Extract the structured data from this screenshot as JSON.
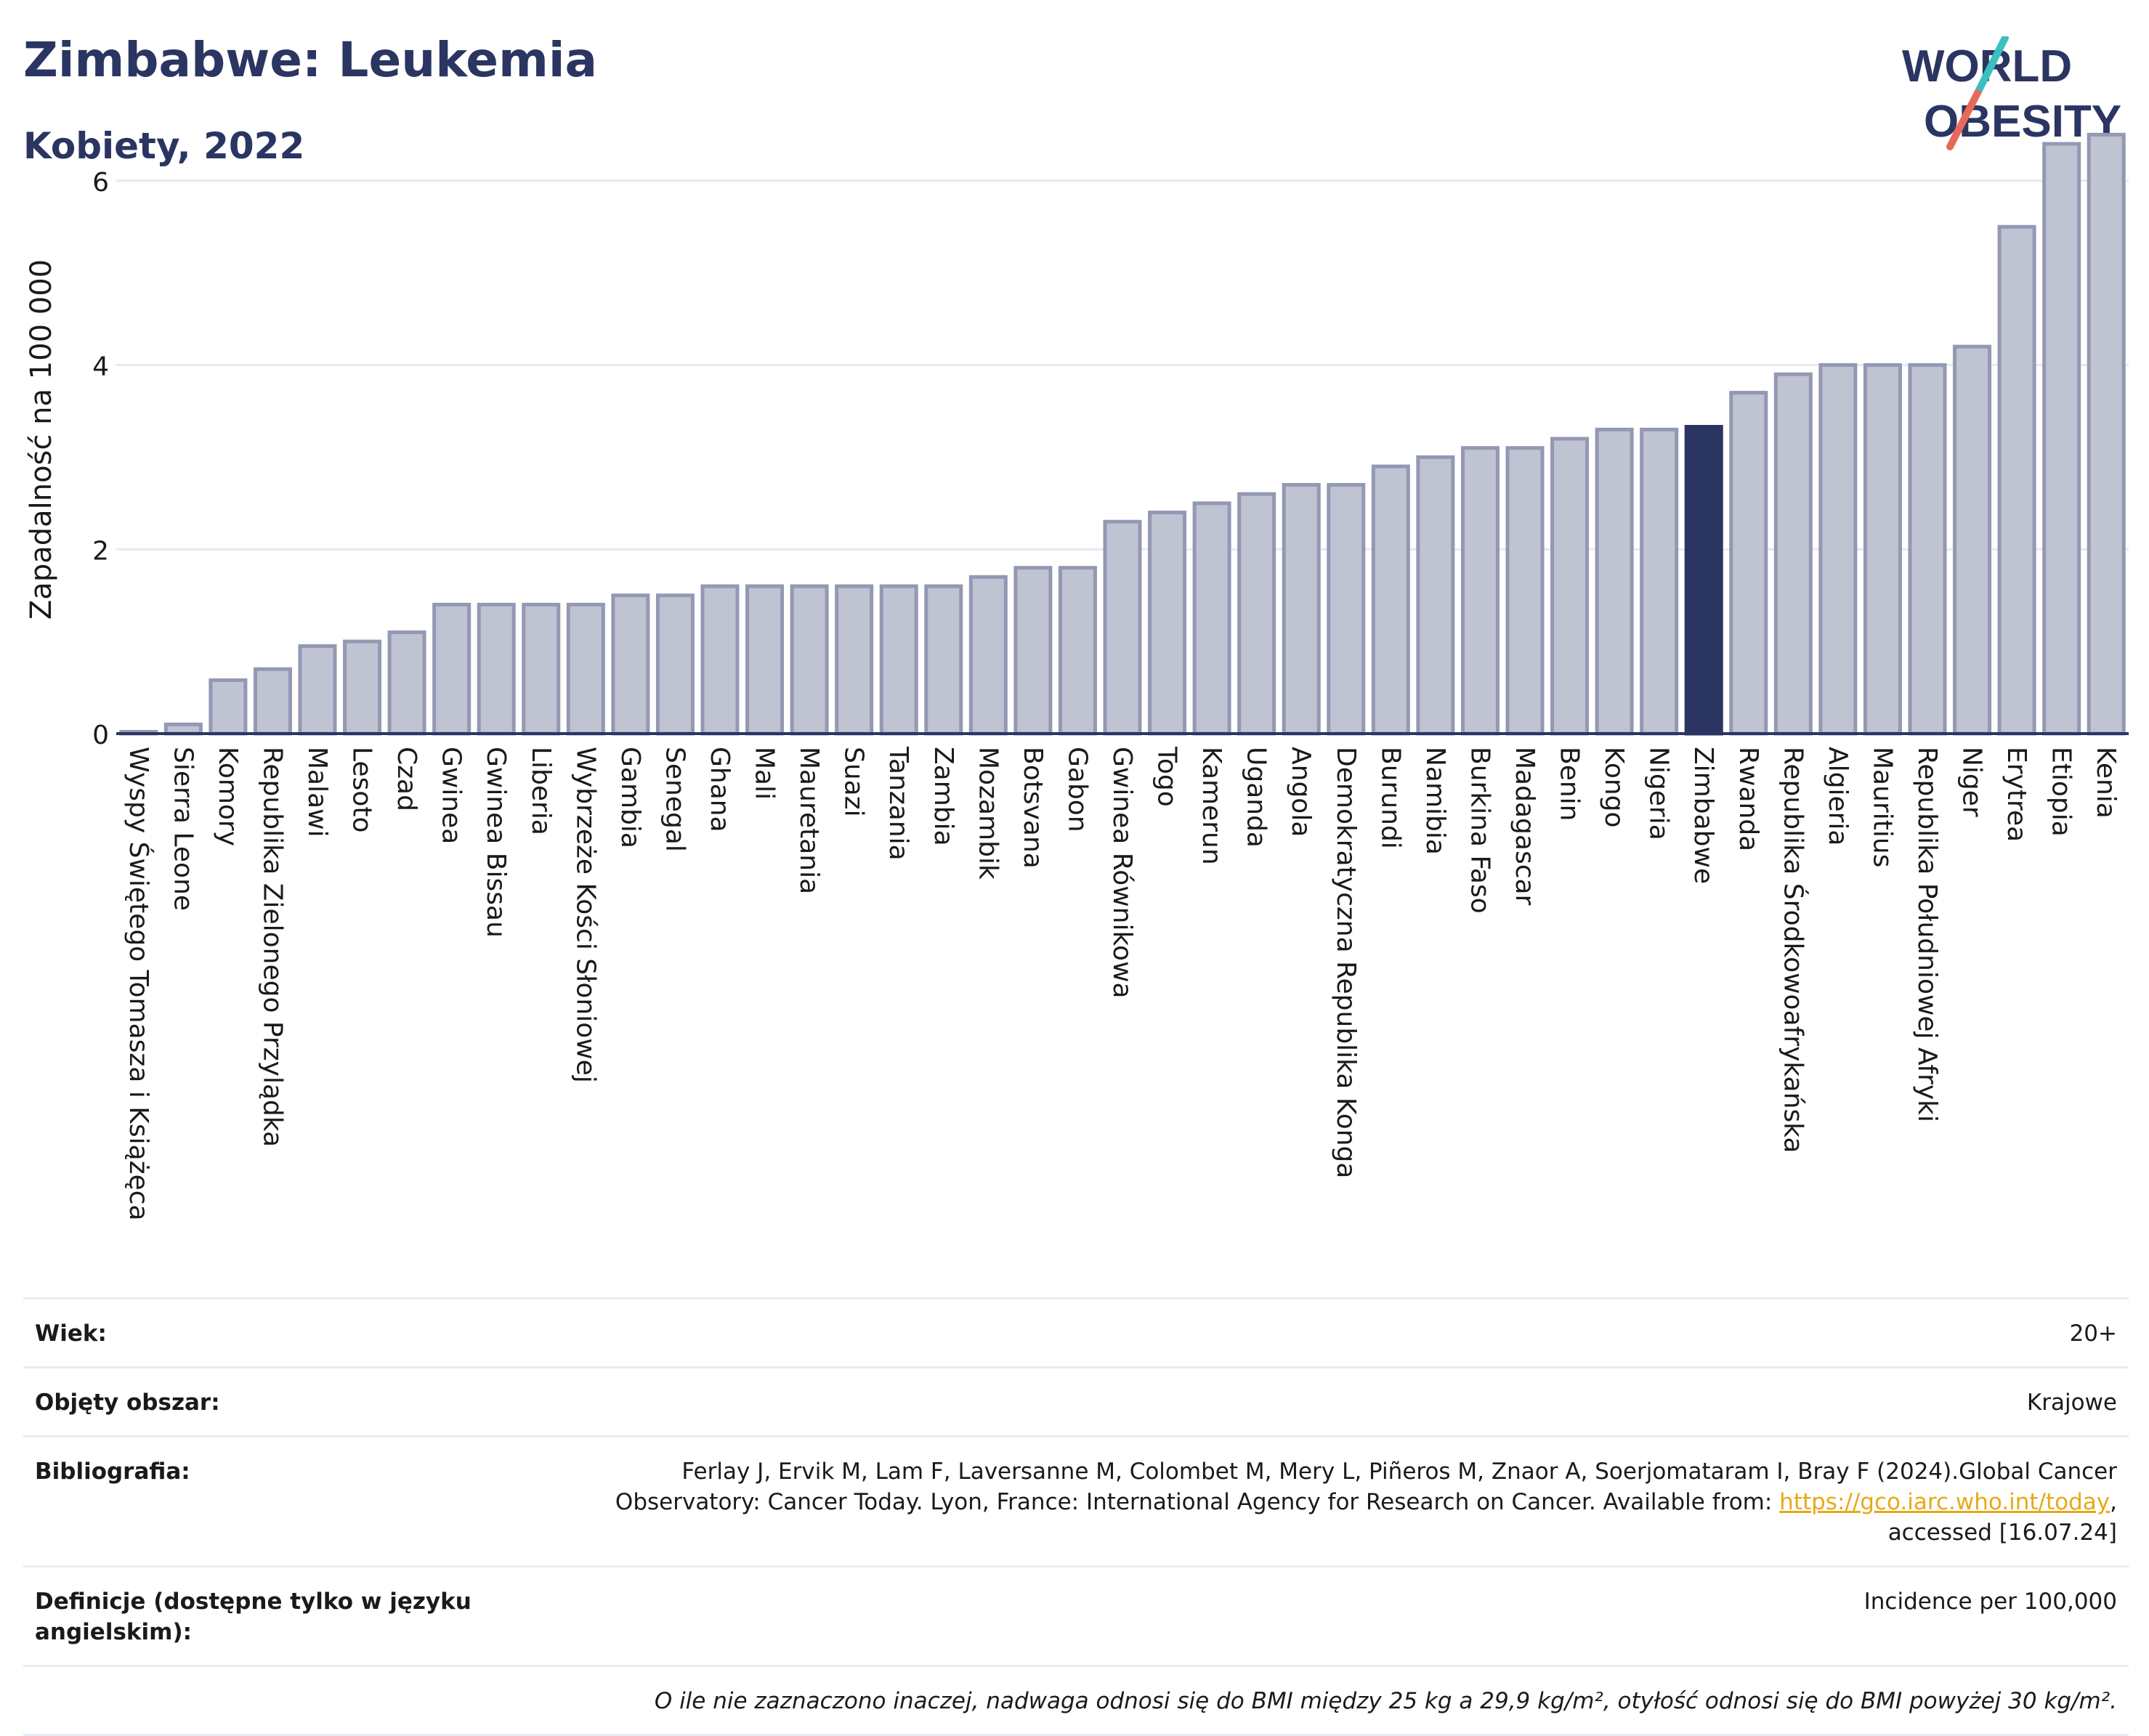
{
  "header": {
    "title": "Zimbabwe: Leukemia",
    "subtitle": "Kobiety, 2022"
  },
  "logo": {
    "line1": "WORLD",
    "line2": "OBESITY",
    "accent_teal": "#3bbfc0",
    "accent_coral": "#e8695a",
    "brand": "#2b3562"
  },
  "chart_data": {
    "type": "bar",
    "ylabel": "Zapadalność na 100 000",
    "ylim": [
      0,
      6.7
    ],
    "yticks": [
      0,
      2,
      4,
      6
    ],
    "grid": true,
    "highlight": "Zimbabwe",
    "colors": {
      "bar": "#bfc3d2",
      "bar_border": "#9398b3",
      "highlight": "#2b3562"
    },
    "categories": [
      "Wyspy Świętego Tomasza i Książęca",
      "Sierra Leone",
      "Komory",
      "Republika Zielonego Przylądka",
      "Malawi",
      "Lesoto",
      "Czad",
      "Gwinea",
      "Gwinea Bissau",
      "Liberia",
      "Wybrzeże Kości Słoniowej",
      "Gambia",
      "Senegal",
      "Ghana",
      "Mali",
      "Mauretania",
      "Suazi",
      "Tanzania",
      "Zambia",
      "Mozambik",
      "Botsvana",
      "Gabon",
      "Gwinea Równikowa",
      "Togo",
      "Kamerun",
      "Uganda",
      "Angola",
      "Demokratyczna Republika Konga",
      "Burundi",
      "Namibia",
      "Burkina Faso",
      "Madagascar",
      "Benin",
      "Kongo",
      "Nigeria",
      "Zimbabwe",
      "Rwanda",
      "Republika Środkowoafrykańska",
      "Algieria",
      "Mauritius",
      "Republika Południowej Afryki",
      "Niger",
      "Erytrea",
      "Etiopia",
      "Kenia"
    ],
    "values": [
      0.02,
      0.1,
      0.58,
      0.7,
      0.95,
      1.0,
      1.1,
      1.4,
      1.4,
      1.4,
      1.4,
      1.5,
      1.5,
      1.6,
      1.6,
      1.6,
      1.6,
      1.6,
      1.6,
      1.7,
      1.8,
      1.8,
      2.3,
      2.4,
      2.5,
      2.6,
      2.7,
      2.7,
      2.9,
      3.0,
      3.1,
      3.1,
      3.2,
      3.3,
      3.3,
      3.33,
      3.7,
      3.9,
      4.0,
      4.0,
      4.0,
      4.2,
      5.5,
      6.4,
      6.5
    ]
  },
  "info": {
    "age_label": "Wiek:",
    "age_value": "20+",
    "area_label": "Objęty obszar:",
    "area_value": "Krajowe",
    "biblio_label": "Bibliografia:",
    "biblio_line1": "Ferlay J, Ervik M, Lam F, Laversanne M, Colombet M, Mery L, Piñeros M, Znaor A, Soerjomataram I, Bray F (2024).Global Cancer",
    "biblio_line2_pre": "Observatory: Cancer Today. Lyon, France: International Agency for Research on Cancer. Available from: ",
    "biblio_link": "https://gco.iarc.who.int/today",
    "biblio_line2_post": ",",
    "biblio_line3": "accessed [16.07.24]",
    "def_label": "Definicje (dostępne tylko w języku angielskim):",
    "def_value": "Incidence per 100,000",
    "note": "O ile nie zaznaczono inaczej, nadwaga odnosi się do BMI między 25 kg a 29,9 kg/m², otyłość odnosi się do BMI powyżej 30 kg/m²."
  }
}
